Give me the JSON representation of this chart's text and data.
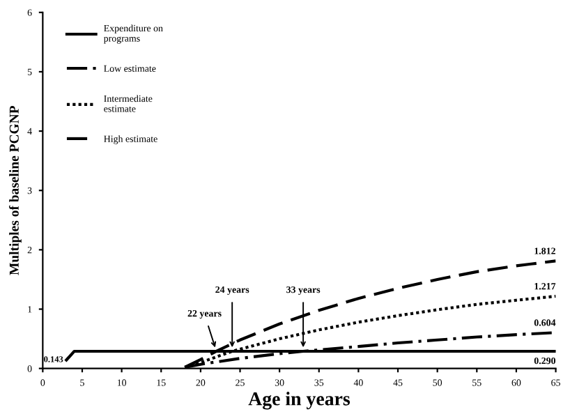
{
  "chart_data": {
    "type": "line",
    "xlabel": "Age in years",
    "ylabel": "Multiples of baseline PCGNP",
    "xlim": [
      0,
      65
    ],
    "xticks": [
      0,
      5,
      10,
      15,
      20,
      25,
      30,
      35,
      40,
      45,
      50,
      55,
      60,
      65
    ],
    "ylim": [
      0,
      6
    ],
    "yticks": [
      0,
      1,
      2,
      3,
      4,
      5,
      6
    ],
    "grid": false,
    "legend": "top left",
    "series": [
      {
        "name": "Expenditure on\nprograms",
        "color": "#000000",
        "line_style": "solid",
        "x": [
          3,
          4,
          65
        ],
        "values": [
          0.143,
          0.29,
          0.29
        ],
        "value_labels": [
          "0.143",
          null,
          "0.290"
        ]
      },
      {
        "name": "Low estimate",
        "color": "#000000",
        "line_style": "dashdot",
        "x": [
          18,
          20,
          25,
          30,
          33,
          40,
          45,
          50,
          55,
          60,
          65
        ],
        "values": [
          0.02,
          0.07,
          0.17,
          0.25,
          0.29,
          0.37,
          0.43,
          0.48,
          0.53,
          0.57,
          0.604
        ],
        "value_labels": [
          null,
          null,
          null,
          null,
          null,
          null,
          null,
          null,
          null,
          null,
          "0.604"
        ]
      },
      {
        "name": "Intermediate\nestimate",
        "color": "#000000",
        "line_style": "dotted",
        "x": [
          18,
          20,
          24,
          30,
          35,
          40,
          45,
          50,
          55,
          60,
          65
        ],
        "values": [
          0.02,
          0.1,
          0.29,
          0.5,
          0.65,
          0.78,
          0.89,
          0.99,
          1.08,
          1.15,
          1.217
        ],
        "value_labels": [
          null,
          null,
          null,
          null,
          null,
          null,
          null,
          null,
          null,
          null,
          "1.217"
        ]
      },
      {
        "name": "High estimate",
        "color": "#000000",
        "line_style": "dashed",
        "x": [
          18,
          20,
          22,
          25,
          30,
          35,
          40,
          45,
          50,
          55,
          60,
          65
        ],
        "values": [
          0.02,
          0.15,
          0.29,
          0.48,
          0.75,
          0.98,
          1.18,
          1.35,
          1.5,
          1.63,
          1.73,
          1.812
        ],
        "value_labels": [
          null,
          null,
          null,
          null,
          null,
          null,
          null,
          null,
          null,
          null,
          null,
          "1.812"
        ]
      }
    ],
    "annotations": [
      {
        "text": "22 years",
        "x": 22,
        "y": 0.29
      },
      {
        "text": "24 years",
        "x": 24,
        "y": 0.29
      },
      {
        "text": "33 years",
        "x": 33,
        "y": 0.29
      }
    ]
  }
}
